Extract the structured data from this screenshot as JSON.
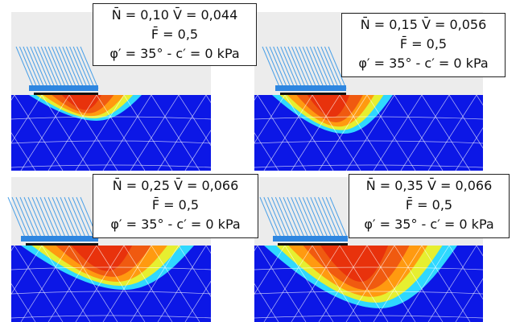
{
  "panels": [
    {
      "lines": [
        "N̄ = 0,10  V̄ = 0,044",
        "F̄ = 0,5",
        "φ′ = 35° - c′ = 0 kPa"
      ]
    },
    {
      "lines": [
        "N̄ = 0,15  V̄ = 0,056",
        "F̄ = 0,5",
        "φ′ = 35° - c′ = 0 kPa"
      ]
    },
    {
      "lines": [
        "N̄ = 0,25  V̄ = 0,066",
        "F̄ = 0,5",
        "φ′ = 35° - c′ = 0 kPa"
      ]
    },
    {
      "lines": [
        "N̄ = 0,35  V̄ = 0,066",
        "F̄ = 0,5",
        "φ′ = 35° - c′ = 0 kPa"
      ]
    }
  ]
}
